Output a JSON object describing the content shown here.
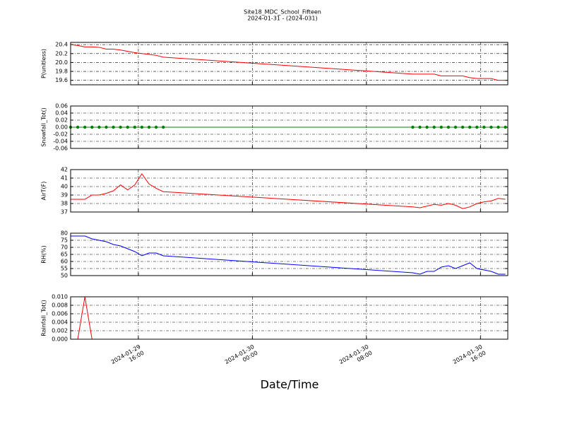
{
  "chart_data": {
    "type": "line",
    "title": "Site18_MDC_School_Fifteen",
    "subtitle": "2024-01-31 - (2024-031)",
    "xlabel": "Date/Time",
    "grid": true,
    "x": [
      "2024-01-29 11:15",
      "2024-01-29 11:45",
      "2024-01-29 12:15",
      "2024-01-29 12:45",
      "2024-01-29 13:15",
      "2024-01-29 13:45",
      "2024-01-29 14:15",
      "2024-01-29 14:45",
      "2024-01-29 15:15",
      "2024-01-29 15:45",
      "2024-01-29 16:15",
      "2024-01-29 16:45",
      "2024-01-29 17:15",
      "2024-01-29 17:45",
      "2024-01-30 11:15",
      "2024-01-30 11:45",
      "2024-01-30 12:15",
      "2024-01-30 12:45",
      "2024-01-30 13:15",
      "2024-01-30 13:45",
      "2024-01-30 14:15",
      "2024-01-30 14:45",
      "2024-01-30 15:15",
      "2024-01-30 15:45",
      "2024-01-30 16:15",
      "2024-01-30 16:45",
      "2024-01-30 17:15",
      "2024-01-30 17:45"
    ],
    "xlim": [
      "2024-01-29 11:15",
      "2024-01-30 17:55"
    ],
    "xticks": [
      {
        "value": "2024-01-29 16:00",
        "label": "2024-01-29\n16:00"
      },
      {
        "value": "2024-01-30 00:00",
        "label": "2024-01-30\n00:00"
      },
      {
        "value": "2024-01-30 08:00",
        "label": "2024-01-30\n08:00"
      },
      {
        "value": "2024-01-30 16:00",
        "label": "2024-01-30\n16:00"
      }
    ],
    "panels": [
      {
        "ylabel": "P(unitless)",
        "ylim": [
          19.5,
          20.45
        ],
        "yticks": [
          {
            "value": 19.6,
            "label": "19.6"
          },
          {
            "value": 19.8,
            "label": "19.8"
          },
          {
            "value": 20,
            "label": "20.0"
          },
          {
            "value": 20.2,
            "label": "20.2"
          },
          {
            "value": 20.4,
            "label": "20.4"
          }
        ],
        "series": [
          {
            "color": "#ff0000",
            "values": [
              20.4,
              20.38,
              20.35,
              20.35,
              20.34,
              20.3,
              20.3,
              20.28,
              20.25,
              20.22,
              20.2,
              20.18,
              20.16,
              20.12,
              19.74,
              19.74,
              19.74,
              19.74,
              19.7,
              19.7,
              19.7,
              19.7,
              19.66,
              19.64,
              19.64,
              19.64,
              19.6,
              19.6
            ]
          }
        ]
      },
      {
        "ylabel": "Snowfall_Tot()",
        "ylim": [
          -0.06,
          0.06
        ],
        "yticks": [
          {
            "value": -0.06,
            "label": "-0.06"
          },
          {
            "value": -0.04,
            "label": "-0.04"
          },
          {
            "value": -0.02,
            "label": "-0.02"
          },
          {
            "value": 0,
            "label": "0.00"
          },
          {
            "value": 0.02,
            "label": "0.02"
          },
          {
            "value": 0.04,
            "label": "0.04"
          },
          {
            "value": 0.06,
            "label": "0.06"
          }
        ],
        "series": [
          {
            "color": "#008000",
            "marker": true,
            "values": [
              0,
              0,
              0,
              0,
              0,
              0,
              0,
              0,
              0,
              0,
              0,
              0,
              0,
              0,
              0,
              0,
              0,
              0,
              0,
              0,
              0,
              0,
              0,
              0,
              0,
              0,
              0,
              0
            ]
          }
        ]
      },
      {
        "ylabel": "AirT(F)",
        "ylim": [
          37,
          42
        ],
        "yticks": [
          37,
          38,
          39,
          40,
          41,
          42
        ],
        "series": [
          {
            "color": "#ff0000",
            "values": [
              38.5,
              38.5,
              38.5,
              39.0,
              39.0,
              39.2,
              39.5,
              40.2,
              39.6,
              40.2,
              41.5,
              40.3,
              39.8,
              39.4,
              37.6,
              37.5,
              37.7,
              37.9,
              37.8,
              38.0,
              37.8,
              37.4,
              37.6,
              38.0,
              38.2,
              38.3,
              38.6,
              38.5
            ]
          }
        ]
      },
      {
        "ylabel": "RH(%)",
        "ylim": [
          50,
          80
        ],
        "yticks": [
          50,
          55,
          60,
          65,
          70,
          75,
          80
        ],
        "series": [
          {
            "color": "#0000ff",
            "values": [
              78,
              78,
              78,
              76,
              75,
              74,
              72,
              71,
              69,
              67,
              64,
              66,
              66,
              64,
              52,
              51,
              53,
              53,
              56,
              57,
              55,
              57,
              59,
              55,
              54,
              53,
              51,
              51
            ]
          }
        ]
      },
      {
        "ylabel": "Rainfall_Tot()",
        "ylim": [
          0,
          0.01
        ],
        "yticks": [
          {
            "value": 0,
            "label": "0.000"
          },
          {
            "value": 0.002,
            "label": "0.002"
          },
          {
            "value": 0.004,
            "label": "0.004"
          },
          {
            "value": 0.006,
            "label": "0.006"
          },
          {
            "value": 0.008,
            "label": "0.008"
          },
          {
            "value": 0.01,
            "label": "0.010"
          }
        ],
        "series": [
          {
            "color": "#ff0000",
            "values": [
              0,
              0,
              0.01,
              0,
              0,
              0,
              0,
              0,
              0,
              0,
              0,
              0,
              0,
              0,
              0,
              0,
              0,
              0,
              0,
              0,
              0,
              0,
              0,
              0,
              0,
              0,
              0,
              0
            ]
          }
        ]
      }
    ]
  }
}
